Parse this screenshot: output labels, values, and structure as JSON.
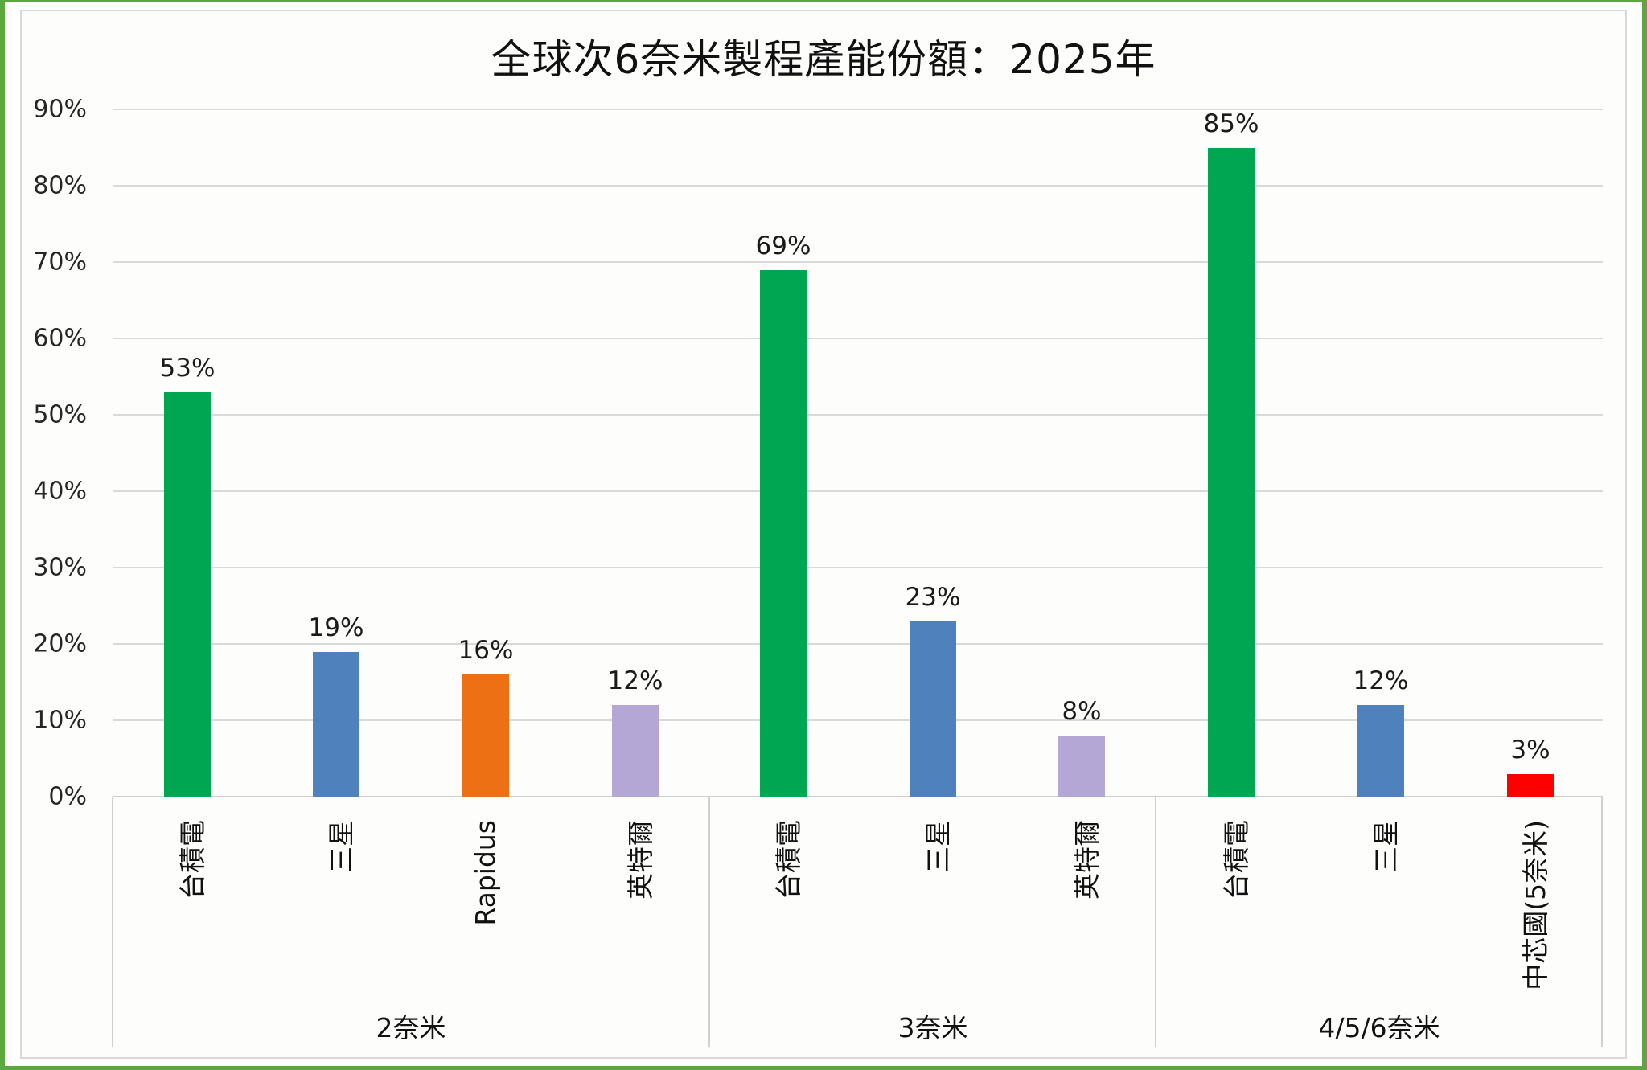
{
  "chart_data": {
    "type": "bar",
    "title": "全球次6奈米製程產能份額：2025年",
    "xlabel": "",
    "ylabel": "",
    "ylim": [
      0,
      0.9
    ],
    "y_ticks": [
      "0%",
      "10%",
      "20%",
      "30%",
      "40%",
      "50%",
      "60%",
      "70%",
      "80%",
      "90%"
    ],
    "grid": true,
    "legend": null,
    "groups": [
      {
        "label": "2奈米",
        "categories": [
          "台積電",
          "三星",
          "Rapidus",
          "英特爾"
        ],
        "values": [
          53,
          19,
          16,
          12
        ]
      },
      {
        "label": "3奈米",
        "categories": [
          "台積電",
          "三星",
          "英特爾"
        ],
        "values": [
          69,
          23,
          8
        ]
      },
      {
        "label": "4/5/6奈米",
        "categories": [
          "台積電",
          "三星",
          "中芯國(5奈米)"
        ],
        "values": [
          85,
          12,
          3
        ]
      }
    ],
    "bars": [
      {
        "group": "2奈米",
        "category": "台積電",
        "value": 53,
        "label": "53%",
        "color": "#00a651"
      },
      {
        "group": "2奈米",
        "category": "三星",
        "value": 19,
        "label": "19%",
        "color": "#4f81bd"
      },
      {
        "group": "2奈米",
        "category": "Rapidus",
        "value": 16,
        "label": "16%",
        "color": "#ed7014"
      },
      {
        "group": "2奈米",
        "category": "英特爾",
        "value": 12,
        "label": "12%",
        "color": "#b4a7d6"
      },
      {
        "group": "3奈米",
        "category": "台積電",
        "value": 69,
        "label": "69%",
        "color": "#00a651"
      },
      {
        "group": "3奈米",
        "category": "三星",
        "value": 23,
        "label": "23%",
        "color": "#4f81bd"
      },
      {
        "group": "3奈米",
        "category": "英特爾",
        "value": 8,
        "label": "8%",
        "color": "#b4a7d6"
      },
      {
        "group": "4/5/6奈米",
        "category": "台積電",
        "value": 85,
        "label": "85%",
        "color": "#00a651"
      },
      {
        "group": "4/5/6奈米",
        "category": "三星",
        "value": 12,
        "label": "12%",
        "color": "#4f81bd"
      },
      {
        "group": "4/5/6奈米",
        "category": "中芯國(5奈米)",
        "value": 3,
        "label": "3%",
        "color": "#ff0000"
      }
    ],
    "unit": "%"
  },
  "colors": {
    "frame_border": "#5aa83e",
    "tsmc": "#00a651",
    "samsung": "#4f81bd",
    "rapidus": "#ed7014",
    "intel": "#b4a7d6",
    "smic": "#ff0000"
  }
}
